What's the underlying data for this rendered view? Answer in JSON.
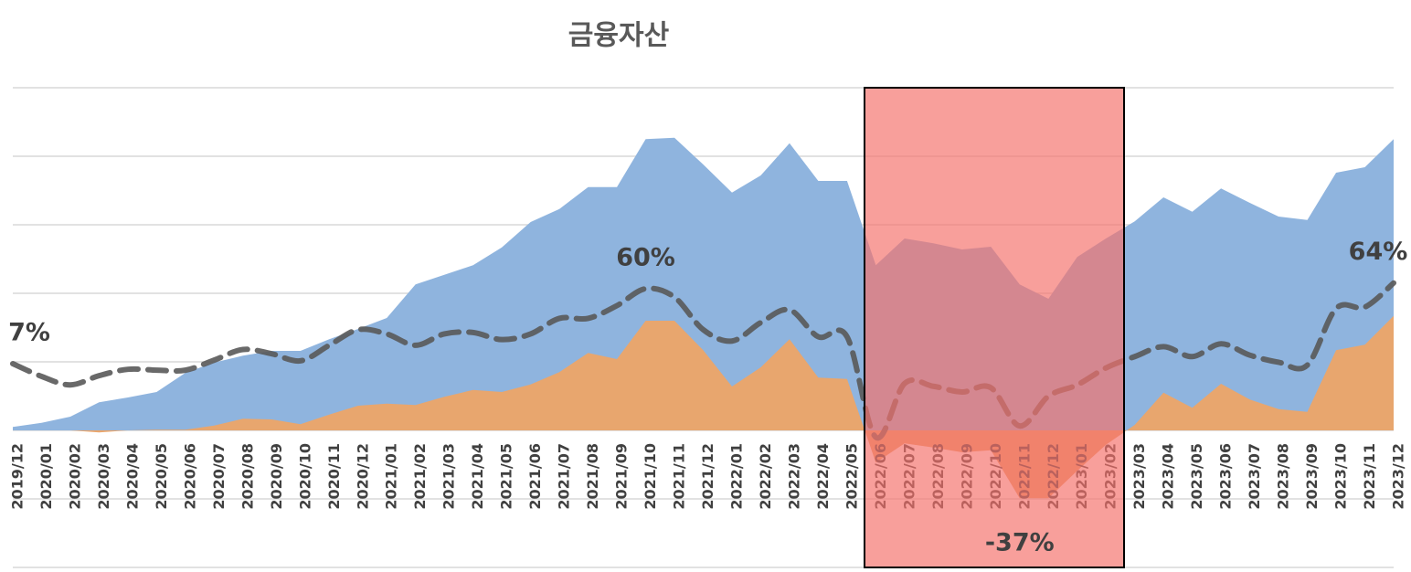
{
  "chart_data": {
    "type": "area",
    "title": "금융자산",
    "categories": [
      "2019/12",
      "2020/01",
      "2020/02",
      "2020/03",
      "2020/04",
      "2020/05",
      "2020/06",
      "2020/07",
      "2020/08",
      "2020/09",
      "2020/10",
      "2020/11",
      "2020/12",
      "2021/01",
      "2021/02",
      "2021/03",
      "2021/04",
      "2021/05",
      "2021/06",
      "2021/07",
      "2021/08",
      "2021/09",
      "2021/10",
      "2021/11",
      "2021/12",
      "2022/01",
      "2022/02",
      "2022/03",
      "2022/04",
      "2022/05",
      "2022/06",
      "2022/07",
      "2022/08",
      "2022/09",
      "2022/10",
      "2022/11",
      "2022/12",
      "2023/01",
      "2023/02",
      "2023/03",
      "2023/04",
      "2023/05",
      "2023/06",
      "2023/07",
      "2023/08",
      "2023/09",
      "2023/10",
      "2023/11",
      "2023/12"
    ],
    "series": [
      {
        "type": "area",
        "color": "#8fb4de",
        "values": [
          0.05,
          0.11,
          0.2,
          0.41,
          0.48,
          0.56,
          0.84,
          0.99,
          1.09,
          1.16,
          1.16,
          1.33,
          1.48,
          1.64,
          2.13,
          2.27,
          2.41,
          2.67,
          3.04,
          3.23,
          3.55,
          3.55,
          4.25,
          4.27,
          3.88,
          3.47,
          3.72,
          4.19,
          3.64,
          3.64,
          2.41,
          2.8,
          2.73,
          2.64,
          2.68,
          2.13,
          1.92,
          2.53,
          2.8,
          3.05,
          3.4,
          3.19,
          3.53,
          3.32,
          3.12,
          3.07,
          3.76,
          3.84,
          4.25
        ]
      },
      {
        "type": "area",
        "color": "#e8a66e",
        "values": [
          0,
          0,
          0,
          -0.03,
          0,
          0.01,
          0.01,
          0.07,
          0.17,
          0.16,
          0.09,
          0.23,
          0.36,
          0.39,
          0.37,
          0.49,
          0.59,
          0.56,
          0.67,
          0.85,
          1.13,
          1.04,
          1.6,
          1.6,
          1.17,
          0.64,
          0.92,
          1.33,
          0.77,
          0.75,
          -0.47,
          -0.19,
          -0.25,
          -0.32,
          -0.29,
          -0.99,
          -0.99,
          -0.59,
          -0.21,
          0.08,
          0.55,
          0.33,
          0.68,
          0.45,
          0.31,
          0.27,
          1.17,
          1.25,
          1.67
        ]
      },
      {
        "type": "line",
        "axis": "y2",
        "color": "#595959",
        "dashed": true,
        "values": [
          7,
          -2,
          -8,
          -1.5,
          3,
          2.4,
          2.4,
          9.5,
          17,
          14,
          9,
          20,
          31,
          28,
          20,
          28,
          29,
          24,
          28,
          39,
          39,
          48,
          60,
          54,
          31,
          23,
          36,
          45,
          26,
          26,
          -45,
          -7,
          -9,
          -13,
          -10,
          -37,
          -16,
          -8,
          4,
          12,
          19,
          12,
          21,
          13,
          8,
          6,
          46,
          47,
          64
        ],
        "value_labels": [
          "7%",
          null,
          null,
          null,
          null,
          null,
          null,
          null,
          null,
          null,
          null,
          null,
          null,
          null,
          null,
          null,
          null,
          null,
          null,
          null,
          null,
          null,
          "60%",
          null,
          null,
          null,
          null,
          null,
          null,
          null,
          null,
          null,
          null,
          null,
          null,
          "-37%",
          null,
          null,
          null,
          null,
          null,
          null,
          null,
          null,
          null,
          null,
          null,
          null,
          "64%"
        ]
      }
    ],
    "ylim": [
      -2,
      5
    ],
    "yticks": [
      -2,
      -1,
      0,
      1,
      2,
      3,
      4,
      5
    ],
    "y2lim": [
      -137,
      202
    ],
    "grid": true
  }
}
